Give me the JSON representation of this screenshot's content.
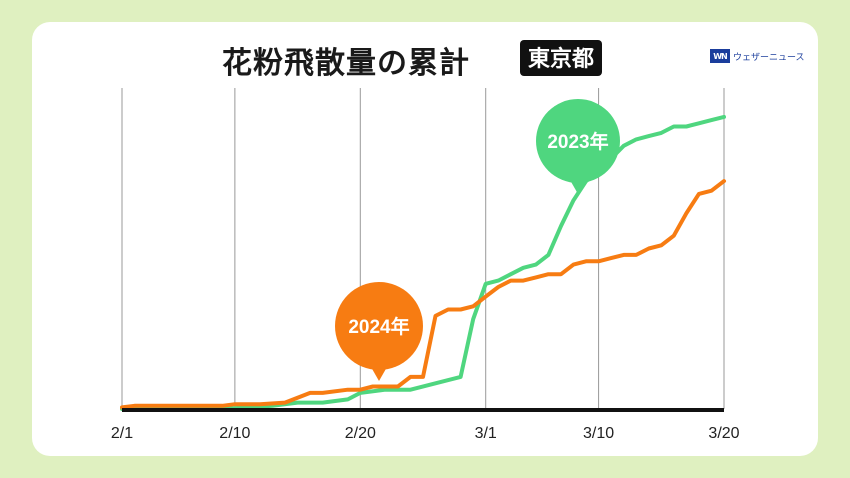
{
  "header": {
    "title": "花粉飛散量の累計",
    "region": "東京都",
    "brand_logo": "WN",
    "brand_name": "ウェザーニュース"
  },
  "chart_data": {
    "type": "line",
    "title": "花粉飛散量の累計 東京都",
    "xlabel": "",
    "ylabel": "",
    "grid": true,
    "x_axis": {
      "ticks": [
        "2/1",
        "2/10",
        "2/20",
        "3/1",
        "3/10",
        "3/20"
      ],
      "tick_day_index": [
        0,
        9,
        19,
        29,
        38,
        48
      ]
    },
    "ylim": [
      0,
      100
    ],
    "series": [
      {
        "name": "2023年",
        "color": "#4fd67f",
        "day_index": [
          0,
          2,
          4,
          6,
          8,
          10,
          12,
          14,
          16,
          18,
          19,
          21,
          23,
          25,
          27,
          28,
          29,
          30,
          31,
          32,
          33,
          34,
          35,
          36,
          37,
          38,
          39,
          40,
          41,
          42,
          43,
          44,
          45,
          46,
          47,
          48
        ],
        "values": [
          0,
          0,
          0,
          0,
          0,
          0.5,
          1,
          2,
          2,
          3,
          5,
          6,
          6,
          8,
          10,
          28,
          39,
          40,
          42,
          44,
          45,
          48,
          57,
          65,
          71,
          74,
          78,
          82,
          84,
          85,
          86,
          88,
          88,
          89,
          90,
          91
        ]
      },
      {
        "name": "2024年",
        "color": "#f77c12",
        "day_index": [
          0,
          1,
          2,
          4,
          6,
          8,
          9,
          11,
          13,
          15,
          16,
          18,
          19,
          20,
          21,
          22,
          23,
          24,
          25,
          26,
          27,
          28,
          29,
          30,
          31,
          32,
          33,
          34,
          35,
          36,
          37,
          38,
          39,
          40,
          41,
          42,
          43,
          44,
          45,
          46,
          47,
          48
        ],
        "values": [
          0.5,
          1,
          1,
          1,
          1,
          1,
          1.5,
          1.5,
          2,
          5,
          5,
          6,
          6,
          7,
          7,
          7,
          10,
          10,
          29,
          31,
          31,
          32,
          35,
          38,
          40,
          40,
          41,
          42,
          42,
          45,
          46,
          46,
          47,
          48,
          48,
          50,
          51,
          54,
          61,
          67,
          68,
          71
        ]
      }
    ],
    "callouts": [
      {
        "series": "2023年",
        "label": "2023年",
        "color": "#4fd67f"
      },
      {
        "series": "2024年",
        "label": "2024年",
        "color": "#f77c12"
      }
    ]
  }
}
